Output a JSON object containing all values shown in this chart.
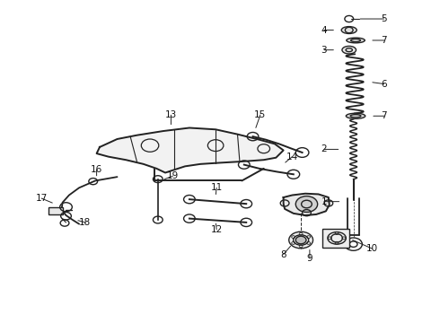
{
  "title": "",
  "background_color": "#ffffff",
  "fig_width": 4.9,
  "fig_height": 3.6,
  "dpi": 100,
  "line_color": "#222222",
  "label_fontsize": 7.5,
  "label_color": "#111111"
}
